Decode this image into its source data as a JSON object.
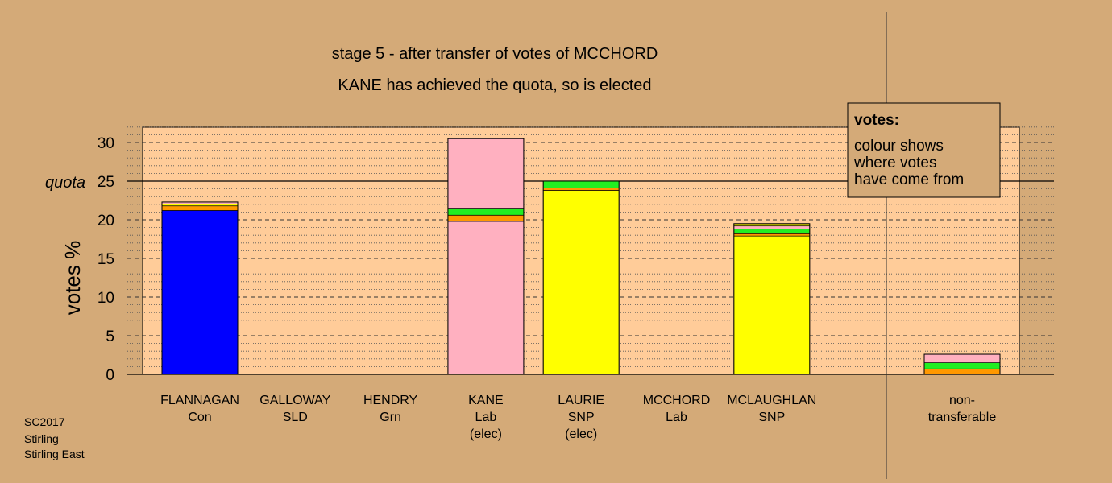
{
  "chart_data": {
    "type": "bar",
    "stacked": true,
    "title": "stage 5 - after transfer of votes of MCCHORD",
    "subtitle": "KANE has achieved the quota, so is elected",
    "ylabel": "votes %",
    "ylim": [
      0,
      32
    ],
    "yticks": [
      0,
      5,
      10,
      15,
      20,
      25,
      30
    ],
    "quota": {
      "label": "quota",
      "value": 25
    },
    "grid": true,
    "legend": {
      "position": "top-right",
      "title": "votes:",
      "lines": [
        "colour shows",
        "where votes",
        "have come from"
      ]
    },
    "colors": {
      "Con": "#0000ff",
      "Lab": "#ffb0c0",
      "SNP": "#ffff00",
      "orange": "#ff9800",
      "green": "#22ee22"
    },
    "candidates": [
      {
        "name": "FLANNAGAN",
        "party": "Con",
        "note": "",
        "segments": [
          {
            "color": "Con",
            "value": 21.2
          },
          {
            "color": "orange",
            "value": 0.6
          },
          {
            "color": "SNP",
            "value": 0.25
          },
          {
            "color": "Lab",
            "value": 0.25
          }
        ]
      },
      {
        "name": "GALLOWAY",
        "party": "SLD",
        "note": "",
        "segments": []
      },
      {
        "name": "HENDRY",
        "party": "Grn",
        "note": "",
        "segments": []
      },
      {
        "name": "KANE",
        "party": "Lab",
        "note": "(elec)",
        "segments": [
          {
            "color": "Lab",
            "value": 19.8
          },
          {
            "color": "orange",
            "value": 0.8
          },
          {
            "color": "green",
            "value": 0.8
          },
          {
            "color": "Lab",
            "value": 9.1
          }
        ]
      },
      {
        "name": "LAURIE",
        "party": "SNP",
        "note": "(elec)",
        "segments": [
          {
            "color": "SNP",
            "value": 23.8
          },
          {
            "color": "orange",
            "value": 0.3
          },
          {
            "color": "green",
            "value": 0.9
          }
        ]
      },
      {
        "name": "MCCHORD",
        "party": "Lab",
        "note": "",
        "segments": []
      },
      {
        "name": "MCLAUGHLAN",
        "party": "SNP",
        "note": "",
        "segments": [
          {
            "color": "SNP",
            "value": 17.9
          },
          {
            "color": "orange",
            "value": 0.3
          },
          {
            "color": "green",
            "value": 0.6
          },
          {
            "color": "Lab",
            "value": 0.4
          },
          {
            "color": "SNP",
            "value": 0.3
          }
        ]
      }
    ],
    "nontransferable": {
      "label_line1": "non-",
      "label_line2": "transferable",
      "segments": [
        {
          "color": "orange",
          "value": 0.7
        },
        {
          "color": "green",
          "value": 0.8
        },
        {
          "color": "Lab",
          "value": 1.1
        }
      ]
    },
    "source": [
      "SC2017",
      "Stirling",
      "Stirling East"
    ]
  }
}
